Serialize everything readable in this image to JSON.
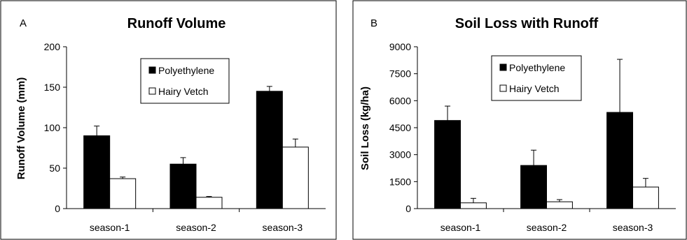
{
  "chart_data": [
    {
      "panel_label": "A",
      "type": "bar",
      "title": "Runoff Volume",
      "xlabel": "",
      "ylabel": "Runoff Volume (mm)",
      "categories": [
        "season-1",
        "season-2",
        "season-3"
      ],
      "series": [
        {
          "name": "Polyethylene",
          "values": [
            90,
            55,
            145
          ],
          "errors": [
            12,
            8,
            6
          ],
          "color": "#000000"
        },
        {
          "name": "Hairy Vetch",
          "values": [
            37,
            14,
            76
          ],
          "errors": [
            2,
            1,
            10
          ],
          "color": "#ffffff"
        }
      ],
      "ylim": [
        0,
        200
      ],
      "yticks": [
        0,
        50,
        100,
        150,
        200
      ],
      "grid": false,
      "legend": "top-right"
    },
    {
      "panel_label": "B",
      "type": "bar",
      "title": "Soil Loss with Runoff",
      "xlabel": "",
      "ylabel": "Soil Loss (kg/ha)",
      "categories": [
        "season-1",
        "season-2",
        "season-3"
      ],
      "series": [
        {
          "name": "Polyethylene",
          "values": [
            4900,
            2400,
            5350
          ],
          "errors": [
            800,
            850,
            2950
          ],
          "color": "#000000"
        },
        {
          "name": "Hairy Vetch",
          "values": [
            320,
            380,
            1200
          ],
          "errors": [
            250,
            120,
            480
          ],
          "color": "#ffffff"
        }
      ],
      "ylim": [
        0,
        9000
      ],
      "yticks": [
        0,
        1500,
        3000,
        4500,
        6000,
        7500,
        9000
      ],
      "grid": false,
      "legend": "top-right"
    }
  ]
}
